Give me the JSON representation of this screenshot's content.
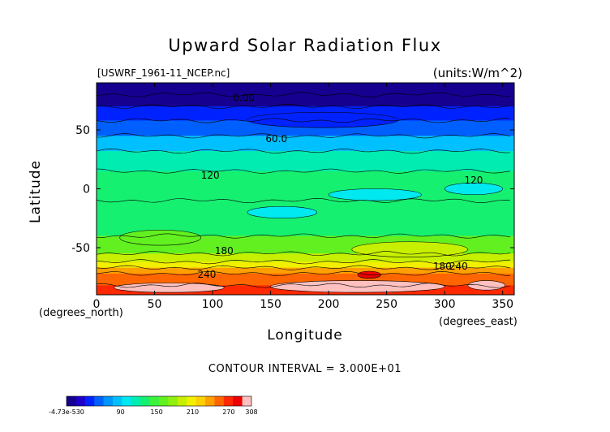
{
  "chart_data": {
    "type": "heatmap",
    "title": "Upward Solar Radiation Flux",
    "file_label": "[USWRF_1961-11_NCEP.nc]",
    "units_label": "(units:W/m^2)",
    "xlabel": "Longitude",
    "ylabel": "Latitude",
    "x_units": "(degrees_east)",
    "y_units": "(degrees_north)",
    "xlim": [
      0,
      360
    ],
    "ylim": [
      -90,
      90
    ],
    "x_ticks": [
      0,
      50,
      100,
      150,
      200,
      250,
      300,
      350
    ],
    "y_ticks": [
      -50,
      0,
      50
    ],
    "contour_interval_text": "CONTOUR INTERVAL = 3.000E+01",
    "contour_labels": [
      {
        "text": "0.00",
        "lon": 127,
        "lat": 78
      },
      {
        "text": "60.0",
        "lon": 155,
        "lat": 43
      },
      {
        "text": "120",
        "lon": 98,
        "lat": 12
      },
      {
        "text": "120",
        "lon": 325,
        "lat": 8
      },
      {
        "text": "180",
        "lon": 110,
        "lat": -52
      },
      {
        "text": "240",
        "lon": 95,
        "lat": -72
      },
      {
        "text": "180",
        "lon": 298,
        "lat": -65
      },
      {
        "text": "240",
        "lon": 312,
        "lat": -65
      }
    ],
    "bands": [
      {
        "lat_top": 90,
        "lat_bottom": 80,
        "value": 0
      },
      {
        "lat_top": 80,
        "lat_bottom": 70,
        "value": 15
      },
      {
        "lat_top": 70,
        "lat_bottom": 58,
        "value": 40
      },
      {
        "lat_top": 58,
        "lat_bottom": 45,
        "value": 60
      },
      {
        "lat_top": 45,
        "lat_bottom": 32,
        "value": 80
      },
      {
        "lat_top": 32,
        "lat_bottom": 15,
        "value": 110
      },
      {
        "lat_top": 15,
        "lat_bottom": -10,
        "value": 130
      },
      {
        "lat_top": -10,
        "lat_bottom": -40,
        "value": 135
      },
      {
        "lat_top": -40,
        "lat_bottom": -55,
        "value": 160
      },
      {
        "lat_top": -55,
        "lat_bottom": -62,
        "value": 190
      },
      {
        "lat_top": -62,
        "lat_bottom": -67,
        "value": 215
      },
      {
        "lat_top": -67,
        "lat_bottom": -72,
        "value": 235
      },
      {
        "lat_top": -72,
        "lat_bottom": -82,
        "value": 255
      },
      {
        "lat_top": -82,
        "lat_bottom": -90,
        "value": 275
      }
    ],
    "patches": [
      {
        "lon": [
          150,
          300
        ],
        "lat": [
          -78,
          -88
        ],
        "value": 300
      },
      {
        "lon": [
          15,
          110
        ],
        "lat": [
          -80,
          -88
        ],
        "value": 300
      },
      {
        "lon": [
          225,
          245
        ],
        "lat": [
          -70,
          -76
        ],
        "value": 290
      },
      {
        "lon": [
          320,
          352
        ],
        "lat": [
          -78,
          -86
        ],
        "value": 300
      },
      {
        "lon": [
          200,
          280
        ],
        "lat": [
          0,
          -10
        ],
        "value": 100
      },
      {
        "lon": [
          130,
          190
        ],
        "lat": [
          -15,
          -25
        ],
        "value": 105
      },
      {
        "lon": [
          300,
          350
        ],
        "lat": [
          5,
          -5
        ],
        "value": 105
      },
      {
        "lon": [
          220,
          320
        ],
        "lat": [
          -45,
          -58
        ],
        "value": 190
      },
      {
        "lon": [
          130,
          260
        ],
        "lat": [
          65,
          52
        ],
        "value": 40
      },
      {
        "lon": [
          20,
          90
        ],
        "lat": [
          -35,
          -48
        ],
        "value": 160
      }
    ],
    "colorbar": {
      "tick_labels": [
        "-4.73e-530",
        "90",
        "150",
        "210",
        "270",
        "308"
      ],
      "tick_values": [
        0,
        90,
        150,
        210,
        270,
        308
      ],
      "min": 0,
      "max": 308,
      "colors": [
        "#150090",
        "#1b00c8",
        "#0022ff",
        "#0060ff",
        "#0094ff",
        "#00c0ff",
        "#00e8f0",
        "#00ecb0",
        "#16f070",
        "#3cf23c",
        "#62f020",
        "#90ee10",
        "#c6f000",
        "#f2f000",
        "#ffd000",
        "#ffa000",
        "#ff6600",
        "#ff2800",
        "#ec0000",
        "#ffc0c0"
      ]
    }
  }
}
